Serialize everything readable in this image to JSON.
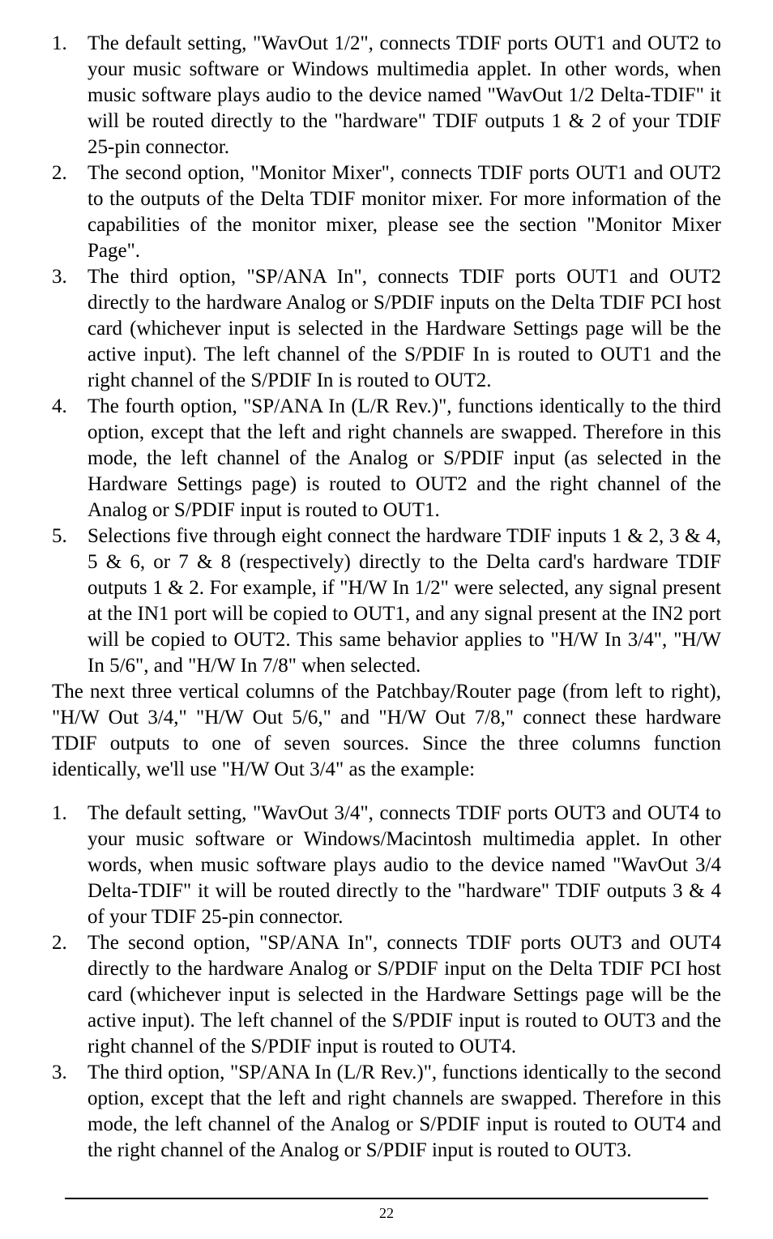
{
  "listA": [
    {
      "n": "1.",
      "t": "The default setting, \"WavOut 1/2\", connects TDIF ports OUT1 and OUT2 to your music software or Windows multimedia applet.  In other words, when music software plays audio to the device named \"WavOut 1/2 Delta-TDIF\" it will be routed directly to the \"hardware\" TDIF outputs 1 & 2 of your TDIF 25-pin connector."
    },
    {
      "n": "2.",
      "t": "The second option, \"Monitor Mixer\", connects TDIF ports OUT1 and OUT2 to the outputs of the Delta TDIF monitor mixer.  For more information of the capabilities of the monitor mixer, please see the section \"Monitor Mixer Page\"."
    },
    {
      "n": "3.",
      "t": "The third option, \"SP/ANA In\", connects TDIF ports OUT1 and OUT2 directly to the hardware Analog or S/PDIF inputs on the Delta TDIF PCI host card (whichever input is selected in the Hardware Settings page will be the active input).  The left channel of the S/PDIF In is routed to OUT1 and the right channel of the S/PDIF In is routed to OUT2."
    },
    {
      "n": "4.",
      "t": "The fourth option, \"SP/ANA In (L/R Rev.)\", functions identically to the third option, except that the left and right channels are swapped.  Therefore in this mode, the left channel of the Analog or S/PDIF input (as selected in the Hardware Settings page) is routed to OUT2 and the right channel of the Analog or S/PDIF input is routed to OUT1."
    },
    {
      "n": "5.",
      "t": "Selections five through eight connect the hardware TDIF inputs 1 & 2, 3 & 4, 5 & 6, or 7 & 8 (respectively) directly to the Delta card's hardware TDIF outputs 1 & 2.  For example, if \"H/W In 1/2\" were selected, any signal present at the IN1 port will be copied to OUT1, and any signal present at the IN2 port will be copied to OUT2.  This same behavior applies to \"H/W In 3/4\", \"H/W In 5/6\", and \"H/W In 7/8\" when selected."
    }
  ],
  "midPara": "The next three vertical columns of the Patchbay/Router page (from left to right),  \"H/W Out 3/4,\" \"H/W Out 5/6,\" and \"H/W Out 7/8,\" connect these hardware TDIF outputs to one of seven sources.  Since the three columns function identically, we'll use \"H/W Out 3/4\" as the example:",
  "listB": [
    {
      "n": "1.",
      "t": "The default setting, \"WavOut 3/4\", connects TDIF ports OUT3 and OUT4 to your music software or Windows/Macintosh multimedia applet.  In other words, when music software plays audio to the device named \"WavOut 3/4 Delta-TDIF\" it will be routed directly to the \"hardware\" TDIF outputs 3 & 4 of your TDIF 25-pin connector."
    },
    {
      "n": "2.",
      "t": "The second option, \"SP/ANA In\", connects TDIF ports OUT3 and OUT4 directly to the hardware Analog or S/PDIF input on the Delta TDIF PCI host card (whichever input is selected in the Hardware Settings page will be the active input).  The left channel of the S/PDIF input is routed to OUT3 and the right channel of the S/PDIF input is routed to OUT4."
    },
    {
      "n": "3.",
      "t": "The third option, \"SP/ANA In (L/R Rev.)\", functions identically to the second option, except that the left and right channels are swapped.  Therefore in this mode, the left channel of the Analog or S/PDIF input is routed to OUT4 and the right channel of the Analog or S/PDIF input is routed to OUT3."
    }
  ],
  "pageNumber": "22"
}
